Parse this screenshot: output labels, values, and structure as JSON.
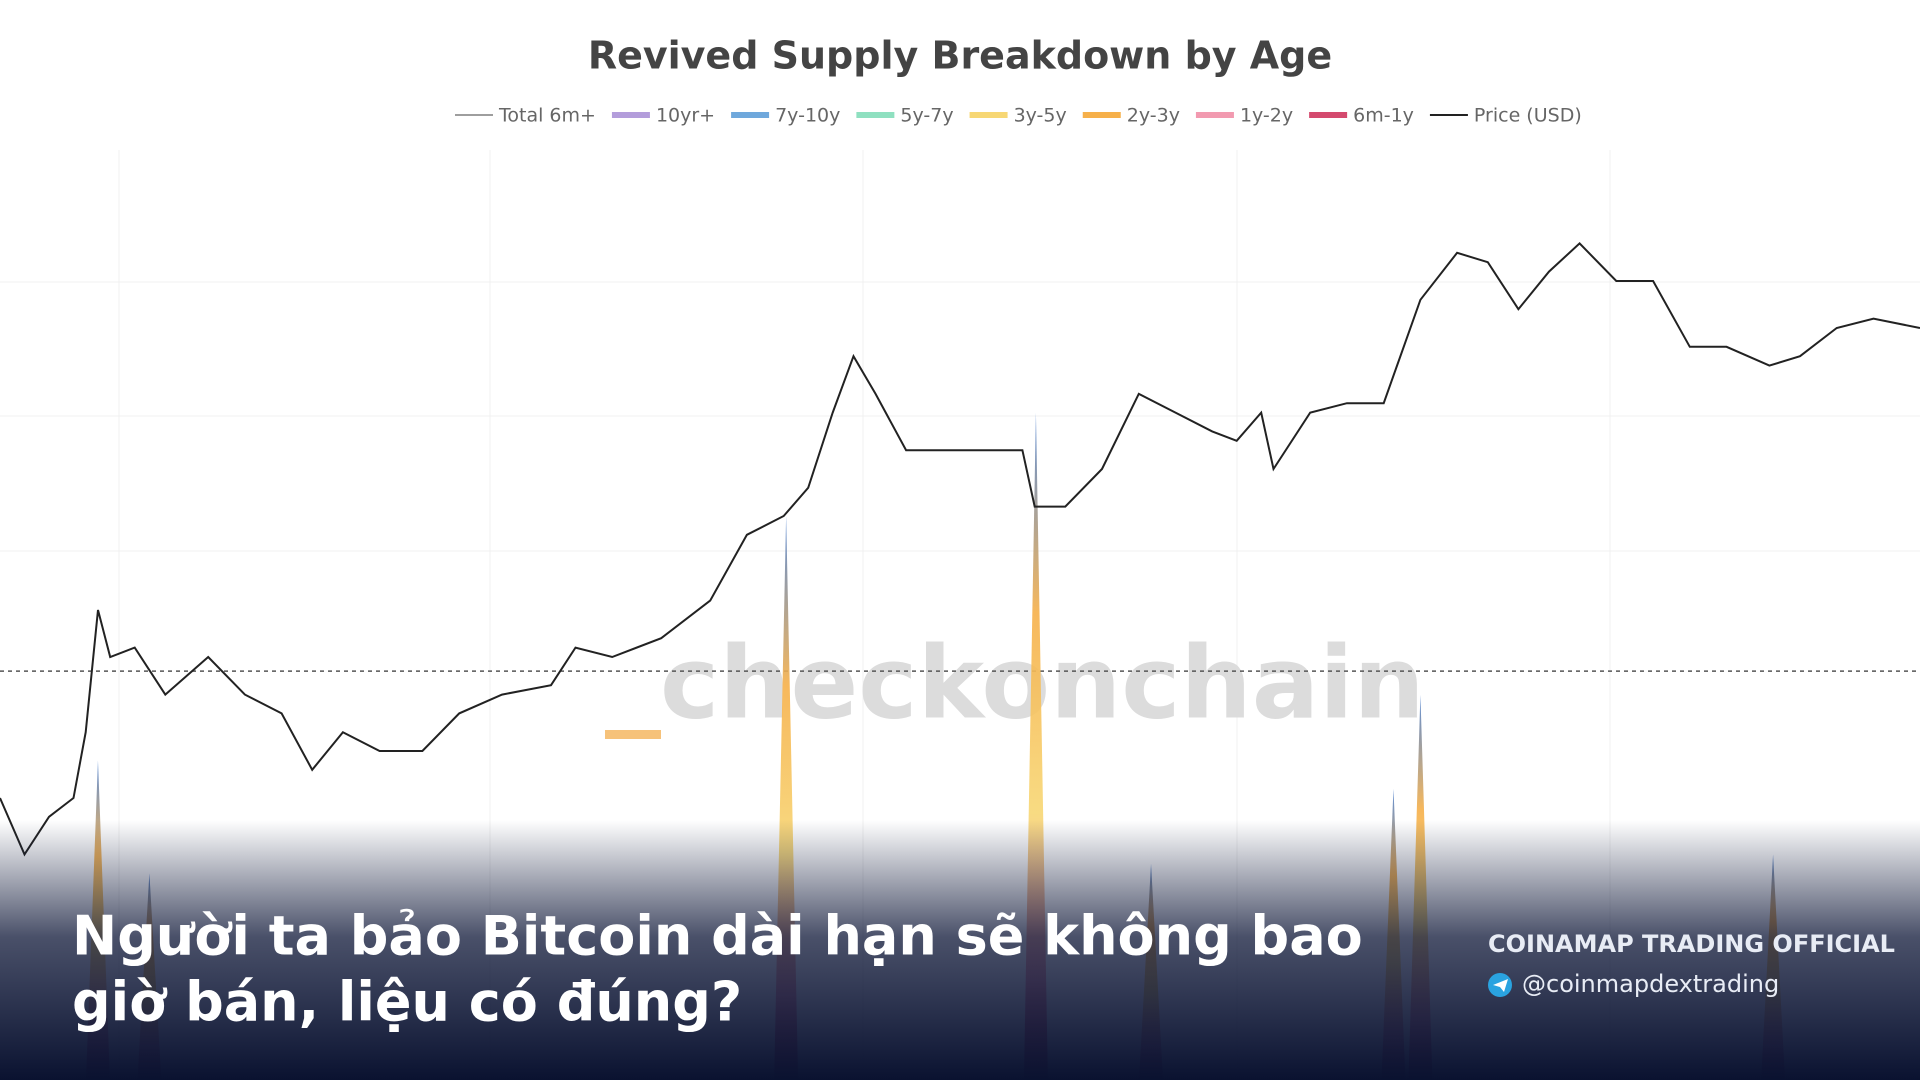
{
  "chart_data": {
    "type": "line",
    "title": "Revived Supply Breakdown by Age",
    "xlim": [
      0,
      1568
    ],
    "ylim": [
      0,
      100
    ],
    "series": [
      {
        "name": "Price (USD)",
        "color": "#222222",
        "x": [
          0,
          20,
          40,
          60,
          70,
          80,
          90,
          110,
          135,
          170,
          200,
          230,
          255,
          280,
          310,
          345,
          375,
          410,
          450,
          470,
          500,
          540,
          580,
          610,
          640,
          660,
          680,
          697,
          715,
          740,
          775,
          810,
          835,
          845,
          870,
          900,
          930,
          960,
          990,
          1010,
          1030,
          1040,
          1070,
          1100,
          1130,
          1160,
          1190,
          1215,
          1240,
          1265,
          1290,
          1320,
          1350,
          1380,
          1410,
          1445,
          1470,
          1500,
          1530,
          1568
        ],
        "values": [
          30,
          24,
          28,
          30,
          37,
          50,
          45,
          46,
          41,
          45,
          41,
          39,
          33,
          37,
          35,
          35,
          39,
          41,
          42,
          46,
          45,
          47,
          51,
          58,
          60,
          63,
          71,
          77,
          73,
          67,
          67,
          67,
          67,
          61,
          61,
          65,
          73,
          71,
          69,
          68,
          71,
          65,
          71,
          72,
          72,
          83,
          88,
          87,
          82,
          86,
          89,
          85,
          85,
          78,
          78,
          76,
          77,
          80,
          81,
          80
        ]
      },
      {
        "name": "Total 6m+",
        "color": "#9e9e9e",
        "x": [
          80,
          122,
          642,
          846,
          940,
          1138,
          1160,
          1448
        ],
        "values": [
          34,
          22,
          60,
          71,
          23,
          31,
          41,
          24
        ]
      }
    ],
    "legend": [
      {
        "name": "10yr+",
        "color": "#b39ddb"
      },
      {
        "name": "7y-10y",
        "color": "#6fa8dc"
      },
      {
        "name": "5y-7y",
        "color": "#8fe0c0"
      },
      {
        "name": "3y-5y",
        "color": "#f7d774"
      },
      {
        "name": "2y-3y",
        "color": "#f6b04a"
      },
      {
        "name": "1y-2y",
        "color": "#f29ab0"
      },
      {
        "name": "6m-1y",
        "color": "#d44a6e"
      }
    ],
    "reference_line": 43.5,
    "watermark": "checkonchain"
  },
  "overlay": {
    "headline": [
      "Người ta bảo Bitcoin dài hạn sẽ không bao",
      "giờ bán, liệu có đúng?"
    ],
    "brand": "COINAMAP TRADING OFFICIAL",
    "handle": "@coinmapdextrading"
  }
}
